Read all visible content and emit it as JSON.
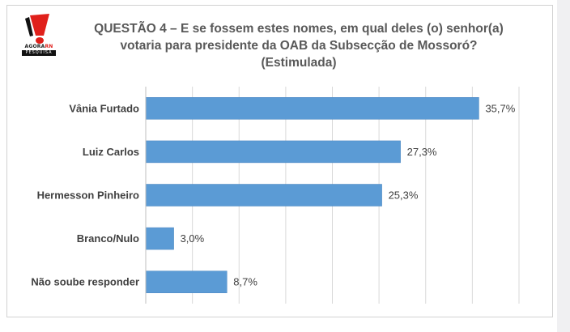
{
  "logo": {
    "brand_part1": "AGORA",
    "brand_part2": "RN",
    "sub": "PESQUISA"
  },
  "chart_data": {
    "type": "bar",
    "orientation": "horizontal",
    "title_lines": [
      "QUESTÃO 4 – E se fossem estes nomes, em qual deles (o) senhor(a)",
      "votaria para presidente da OAB da Subsecção de Mossoró?",
      "(Estimulada)"
    ],
    "categories": [
      "Vânia Furtado",
      "Luiz Carlos",
      "Hermesson Pinheiro",
      "Branco/Nulo",
      "Não soube responder"
    ],
    "values": [
      35.7,
      27.3,
      25.3,
      3.0,
      8.7
    ],
    "value_labels": [
      "35,7%",
      "27,3%",
      "25,3%",
      "3,0%",
      "8,7%"
    ],
    "xlim": [
      0,
      40
    ],
    "gridlines": "vertical",
    "legend": "none",
    "bar_color": "#5b9bd5"
  }
}
